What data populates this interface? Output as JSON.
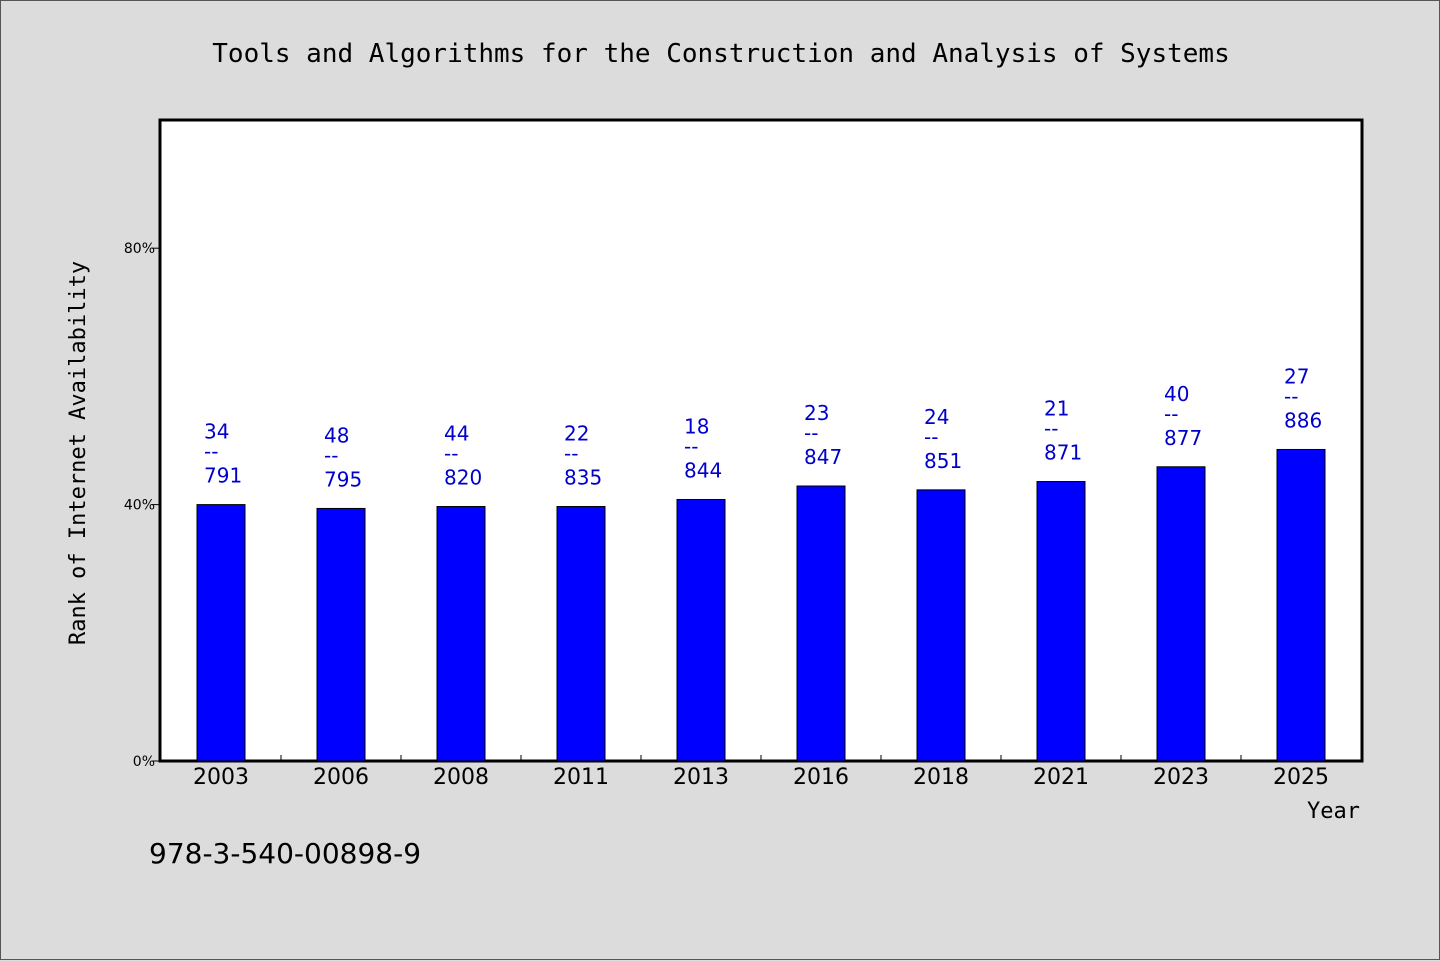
{
  "chart_data": {
    "type": "bar",
    "title": "Tools and Algorithms for the Construction and Analysis of Systems",
    "xlabel": "Year",
    "ylabel": "Rank of Internet Availability",
    "categories": [
      "2003",
      "2006",
      "2008",
      "2011",
      "2013",
      "2016",
      "2018",
      "2021",
      "2023",
      "2025"
    ],
    "values": [
      40,
      39.4,
      39.7,
      39.7,
      40.8,
      42.9,
      42.3,
      43.6,
      45.9,
      48.6
    ],
    "value_unit": "%",
    "data_labels": [
      {
        "rank": "34",
        "total": "791"
      },
      {
        "rank": "48",
        "total": "795"
      },
      {
        "rank": "44",
        "total": "820"
      },
      {
        "rank": "22",
        "total": "835"
      },
      {
        "rank": "18",
        "total": "844"
      },
      {
        "rank": "23",
        "total": "847"
      },
      {
        "rank": "24",
        "total": "851"
      },
      {
        "rank": "21",
        "total": "871"
      },
      {
        "rank": "40",
        "total": "877"
      },
      {
        "rank": "27",
        "total": "886"
      }
    ],
    "label_separator": "--",
    "ylim": [
      0,
      100
    ],
    "yticks": [
      0,
      40,
      80
    ],
    "ytick_labels": [
      "0%",
      "40%",
      "80%"
    ],
    "grid": false,
    "bar_color": "#0000ff",
    "label_color": "#0000cc"
  },
  "footer": {
    "isbn": "978-3-540-00898-9"
  }
}
